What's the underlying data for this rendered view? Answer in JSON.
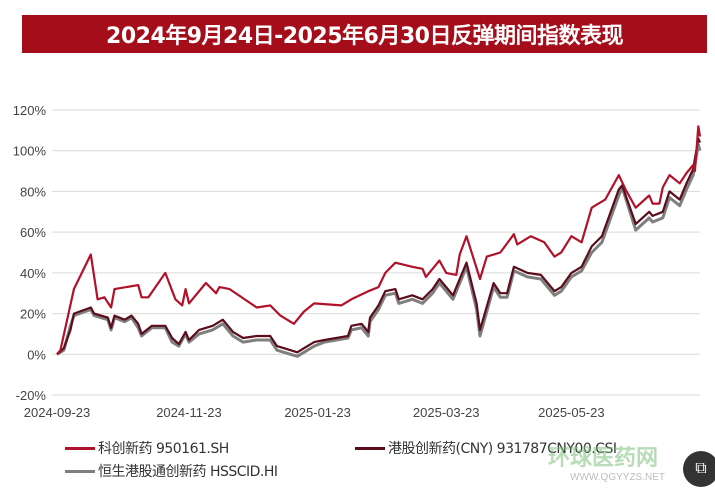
{
  "chart_data": {
    "type": "line",
    "title": "2024年9月24日-2025年6月30日反弹期间指数表现",
    "xlabel": "",
    "ylabel": "",
    "x_unit": "trading-day index",
    "xlim": [
      0,
      190
    ],
    "ylim": [
      -20,
      120
    ],
    "yticks": [
      -20,
      0,
      20,
      40,
      60,
      80,
      100,
      120
    ],
    "ytick_labels": [
      "-20%",
      "0%",
      "20%",
      "40%",
      "60%",
      "80%",
      "100%",
      "120%"
    ],
    "xticks": [
      0,
      39,
      77,
      115,
      152
    ],
    "xtick_labels": [
      "2024-09-23",
      "2024-11-23",
      "2025-01-23",
      "2025-03-23",
      "2025-05-23"
    ],
    "grid": true,
    "legend_position": "bottom",
    "series": [
      {
        "name": "科创新药 950161.SH",
        "color": "#b0122a",
        "points": [
          [
            0,
            0
          ],
          [
            1,
            2
          ],
          [
            5,
            32
          ],
          [
            10,
            49
          ],
          [
            12,
            27
          ],
          [
            14,
            28
          ],
          [
            16,
            23
          ],
          [
            17,
            32
          ],
          [
            24,
            34
          ],
          [
            25,
            28
          ],
          [
            27,
            28
          ],
          [
            32,
            40
          ],
          [
            35,
            27
          ],
          [
            37,
            24
          ],
          [
            38,
            32
          ],
          [
            39,
            25
          ],
          [
            44,
            35
          ],
          [
            47,
            30
          ],
          [
            48,
            33
          ],
          [
            51,
            32
          ],
          [
            59,
            23
          ],
          [
            63,
            24
          ],
          [
            66,
            19
          ],
          [
            70,
            15
          ],
          [
            73,
            21
          ],
          [
            76,
            25
          ],
          [
            84,
            24
          ],
          [
            87,
            27
          ],
          [
            92,
            31
          ],
          [
            95,
            33
          ],
          [
            97,
            40
          ],
          [
            100,
            45
          ],
          [
            105,
            43
          ],
          [
            108,
            42
          ],
          [
            109,
            38
          ],
          [
            113,
            46
          ],
          [
            115,
            40
          ],
          [
            118,
            39
          ],
          [
            119,
            49
          ],
          [
            121,
            58
          ],
          [
            125,
            37
          ],
          [
            127,
            48
          ],
          [
            131,
            50
          ],
          [
            135,
            59
          ],
          [
            136,
            54
          ],
          [
            140,
            58
          ],
          [
            144,
            55
          ],
          [
            147,
            48
          ],
          [
            149,
            50
          ],
          [
            152,
            58
          ],
          [
            155,
            55
          ],
          [
            158,
            72
          ],
          [
            162,
            76
          ],
          [
            166,
            88
          ],
          [
            168,
            81
          ],
          [
            171,
            72
          ],
          [
            175,
            78
          ],
          [
            176,
            74
          ],
          [
            178,
            74
          ],
          [
            179,
            82
          ],
          [
            181,
            88
          ],
          [
            184,
            84
          ],
          [
            186,
            89
          ],
          [
            188,
            93
          ],
          [
            188.5,
            90
          ],
          [
            189.5,
            112
          ],
          [
            190,
            107
          ]
        ]
      },
      {
        "name": "港股创新药(CNY) 931787CNY00.CSI",
        "color": "#5c0d1c",
        "points": [
          [
            0,
            0
          ],
          [
            2,
            3
          ],
          [
            4,
            12
          ],
          [
            5,
            20
          ],
          [
            10,
            23
          ],
          [
            11,
            20
          ],
          [
            15,
            18
          ],
          [
            16,
            13
          ],
          [
            17,
            19
          ],
          [
            20,
            17
          ],
          [
            22,
            19
          ],
          [
            24,
            15
          ],
          [
            25,
            10
          ],
          [
            28,
            14
          ],
          [
            32,
            14
          ],
          [
            34,
            8
          ],
          [
            36,
            5
          ],
          [
            38,
            11
          ],
          [
            39,
            7
          ],
          [
            42,
            12
          ],
          [
            46,
            14
          ],
          [
            49,
            17
          ],
          [
            52,
            11
          ],
          [
            55,
            8
          ],
          [
            59,
            9
          ],
          [
            63,
            9
          ],
          [
            65,
            4
          ],
          [
            69,
            2
          ],
          [
            71,
            1
          ],
          [
            73,
            3
          ],
          [
            76,
            6
          ],
          [
            79,
            7
          ],
          [
            86,
            9
          ],
          [
            87,
            14
          ],
          [
            90,
            15
          ],
          [
            92,
            11
          ],
          [
            92.5,
            18
          ],
          [
            95,
            24
          ],
          [
            97,
            31
          ],
          [
            100,
            32
          ],
          [
            101,
            27
          ],
          [
            105,
            29
          ],
          [
            108,
            27
          ],
          [
            111,
            32
          ],
          [
            113,
            37
          ],
          [
            117,
            29
          ],
          [
            119,
            37
          ],
          [
            121,
            45
          ],
          [
            124,
            25
          ],
          [
            125,
            12
          ],
          [
            129,
            35
          ],
          [
            131,
            30
          ],
          [
            133,
            30
          ],
          [
            135,
            43
          ],
          [
            139,
            40
          ],
          [
            143,
            39
          ],
          [
            145,
            35
          ],
          [
            147,
            31
          ],
          [
            149,
            33
          ],
          [
            152,
            40
          ],
          [
            155,
            43
          ],
          [
            158,
            53
          ],
          [
            161,
            58
          ],
          [
            166,
            81
          ],
          [
            167,
            83
          ],
          [
            171,
            64
          ],
          [
            175,
            70
          ],
          [
            176,
            68
          ],
          [
            179,
            70
          ],
          [
            181,
            80
          ],
          [
            184,
            76
          ],
          [
            186,
            84
          ],
          [
            188,
            91
          ],
          [
            189.5,
            106
          ],
          [
            190,
            104
          ]
        ]
      },
      {
        "name": "恒生港股通创新药 HSSCID.HI",
        "color": "#7f7f7f",
        "points": [
          [
            0,
            0
          ],
          [
            2,
            2
          ],
          [
            4,
            14
          ],
          [
            5,
            19
          ],
          [
            10,
            22
          ],
          [
            11,
            19
          ],
          [
            15,
            17
          ],
          [
            16,
            12
          ],
          [
            17,
            18
          ],
          [
            20,
            16
          ],
          [
            22,
            18
          ],
          [
            24,
            13
          ],
          [
            25,
            9
          ],
          [
            28,
            13
          ],
          [
            32,
            13
          ],
          [
            34,
            6
          ],
          [
            36,
            4
          ],
          [
            38,
            10
          ],
          [
            39,
            6
          ],
          [
            42,
            10
          ],
          [
            46,
            12
          ],
          [
            49,
            15
          ],
          [
            52,
            9
          ],
          [
            55,
            6
          ],
          [
            59,
            7
          ],
          [
            63,
            7
          ],
          [
            65,
            2
          ],
          [
            69,
            0
          ],
          [
            71,
            -1
          ],
          [
            73,
            1
          ],
          [
            76,
            4
          ],
          [
            79,
            6
          ],
          [
            86,
            8
          ],
          [
            87,
            12
          ],
          [
            90,
            13
          ],
          [
            92,
            9
          ],
          [
            92.5,
            16
          ],
          [
            95,
            22
          ],
          [
            97,
            29
          ],
          [
            100,
            30
          ],
          [
            101,
            25
          ],
          [
            105,
            27
          ],
          [
            108,
            25
          ],
          [
            111,
            30
          ],
          [
            113,
            35
          ],
          [
            117,
            27
          ],
          [
            119,
            35
          ],
          [
            121,
            43
          ],
          [
            124,
            22
          ],
          [
            125,
            9
          ],
          [
            129,
            33
          ],
          [
            131,
            28
          ],
          [
            133,
            28
          ],
          [
            135,
            41
          ],
          [
            139,
            38
          ],
          [
            143,
            37
          ],
          [
            145,
            33
          ],
          [
            147,
            29
          ],
          [
            149,
            31
          ],
          [
            152,
            38
          ],
          [
            155,
            41
          ],
          [
            158,
            50
          ],
          [
            161,
            55
          ],
          [
            166,
            78
          ],
          [
            167,
            82
          ],
          [
            171,
            61
          ],
          [
            175,
            67
          ],
          [
            176,
            65
          ],
          [
            179,
            67
          ],
          [
            181,
            77
          ],
          [
            184,
            73
          ],
          [
            186,
            81
          ],
          [
            188,
            88
          ],
          [
            189.5,
            103
          ],
          [
            190,
            100
          ]
        ]
      }
    ]
  },
  "legend": {
    "items": [
      "科创新药 950161.SH",
      "港股创新药(CNY) 931787CNY00.CSI",
      "恒生港股通创新药 HSSCID.HI"
    ]
  },
  "watermark": {
    "cn": "环球医药网",
    "url": "WWW.QGYYZS.NET"
  },
  "share_icon": "share-image-icon"
}
